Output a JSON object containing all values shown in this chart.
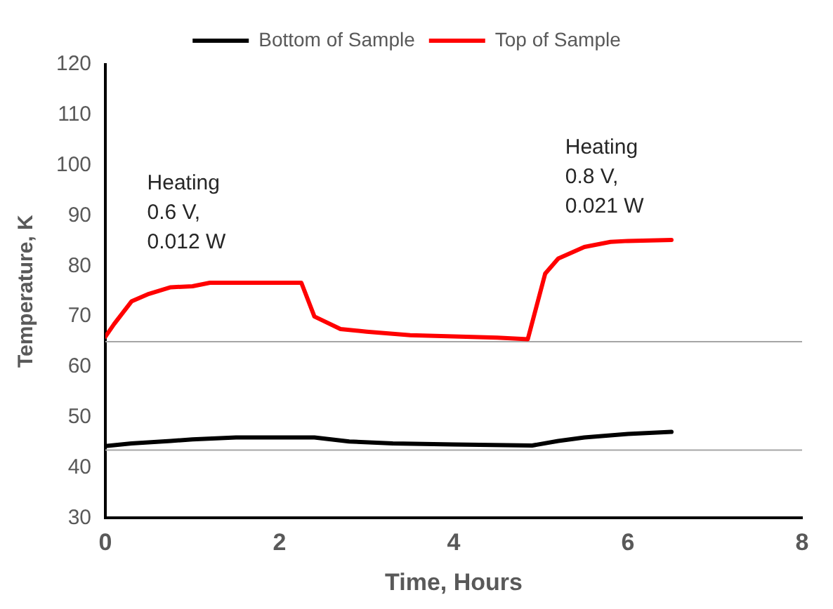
{
  "chart_data": {
    "type": "line",
    "xlabel": "Time, Hours",
    "ylabel": "Temperature, K",
    "xlim": [
      0,
      8
    ],
    "xticks": [
      0,
      2,
      4,
      6,
      8
    ],
    "ylim": [
      30,
      120
    ],
    "yticks": [
      30,
      40,
      50,
      60,
      70,
      80,
      90,
      100,
      110,
      120
    ],
    "grid": false,
    "legend": "top",
    "marker": "none",
    "line_style": "solid",
    "series": [
      {
        "name": "Bottom of Sample",
        "color": "#000000",
        "x": [
          0,
          0.3,
          0.75,
          1.0,
          1.5,
          2.4,
          2.8,
          3.3,
          4.0,
          4.9,
          5.2,
          5.5,
          6.0,
          6.5
        ],
        "values": [
          44.3,
          44.8,
          45.3,
          45.6,
          46,
          46,
          45.2,
          44.8,
          44.6,
          44.4,
          45.3,
          46,
          46.7,
          47.1
        ]
      },
      {
        "name": "Top of Sample",
        "color": "#ff0000",
        "x": [
          0,
          0.1,
          0.3,
          0.5,
          0.75,
          1.0,
          1.2,
          2.25,
          2.4,
          2.7,
          3.0,
          3.5,
          4.5,
          4.85,
          4.95,
          5.05,
          5.2,
          5.5,
          5.8,
          6.0,
          6.5
        ],
        "values": [
          66,
          68.5,
          73,
          74.5,
          75.8,
          76,
          76.7,
          76.7,
          70,
          67.5,
          67,
          66.3,
          65.8,
          65.5,
          72,
          78.5,
          81.5,
          83.8,
          84.8,
          85,
          85.2
        ]
      }
    ],
    "ref_lines": [
      {
        "axis": "y",
        "value": 65,
        "color": "#a6a6a6"
      },
      {
        "axis": "y",
        "value": 43.5,
        "color": "#a6a6a6"
      }
    ],
    "annotations": [
      "Heating\n0.6 V,\n0.012 W",
      "Heating\n0.8 V,\n0.021 W"
    ]
  }
}
